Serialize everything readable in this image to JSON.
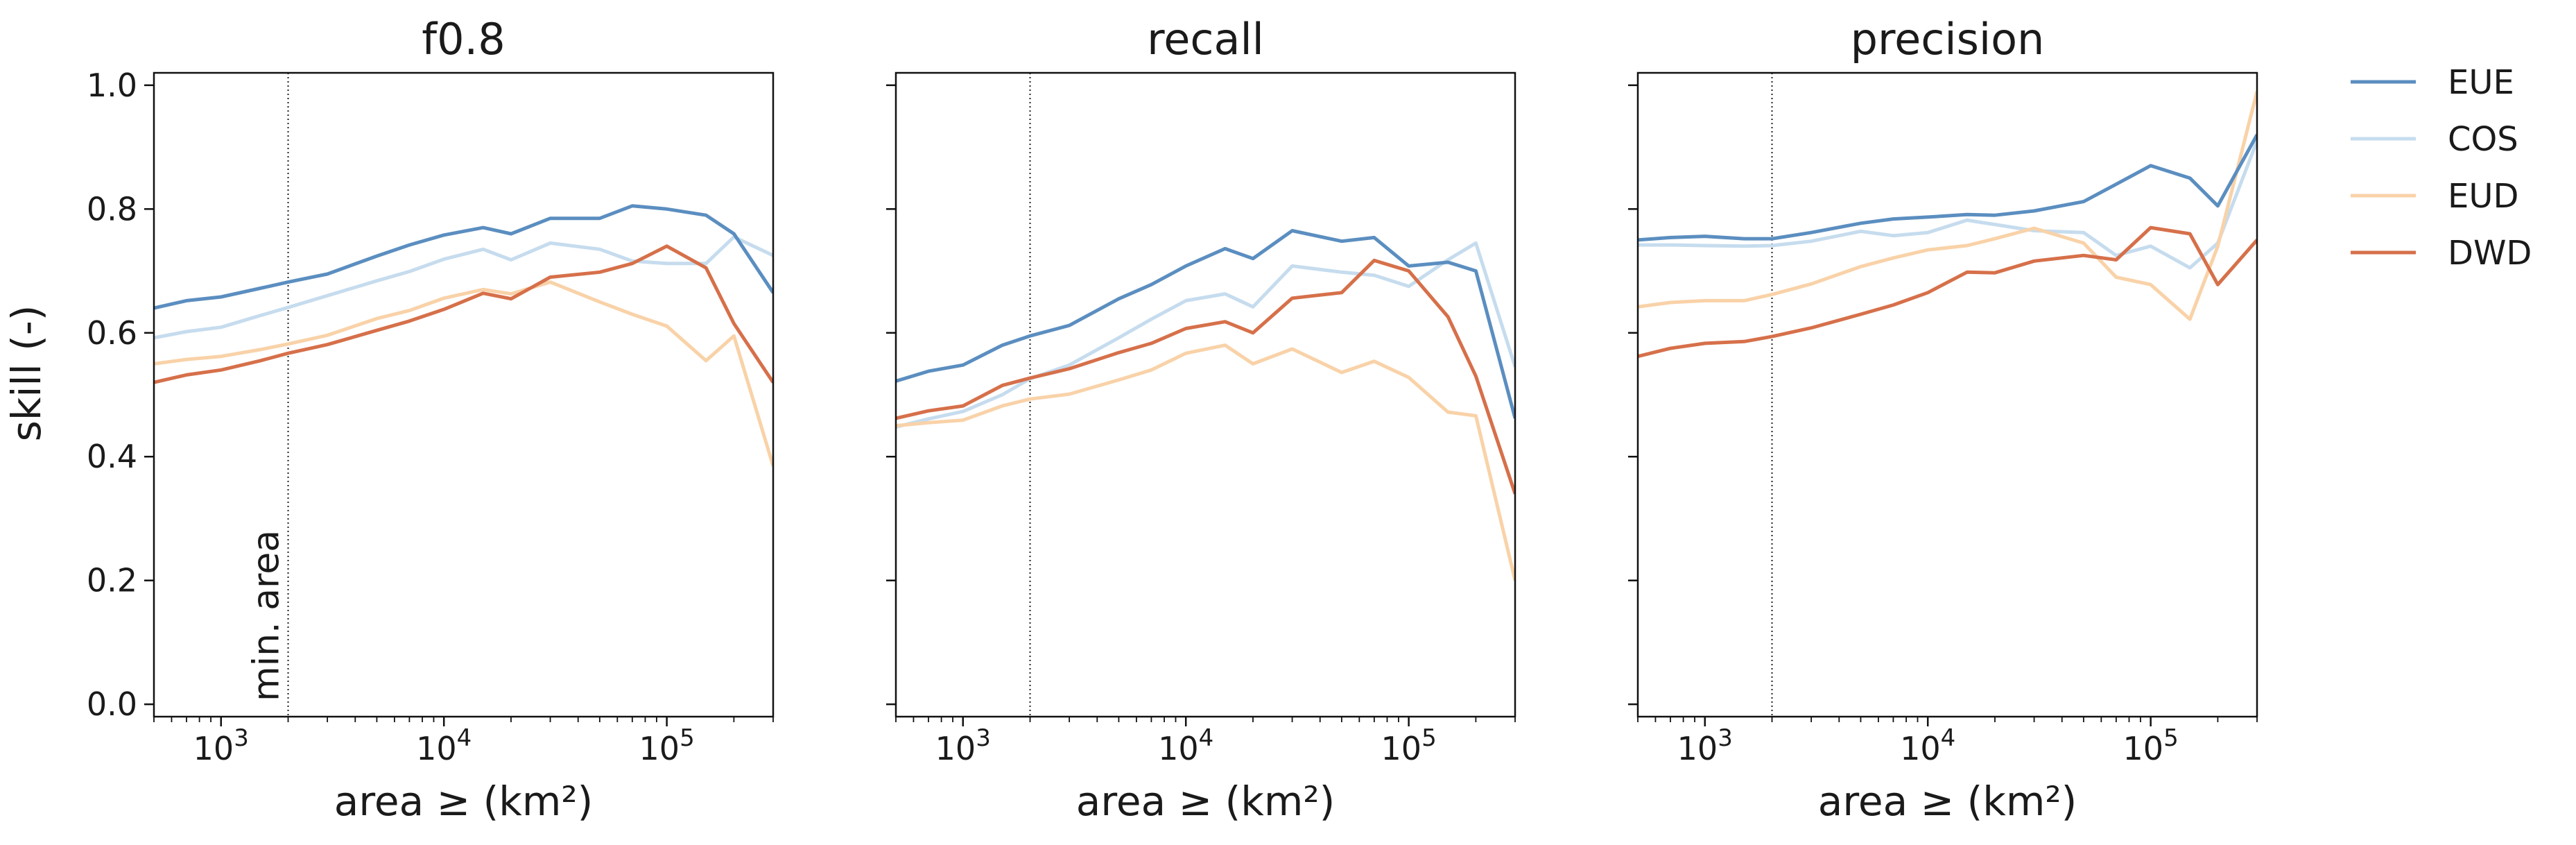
{
  "chart_data": {
    "type": "line",
    "ylabel": "skill (-)",
    "xlabel": "area ≥ (km²)",
    "x_scale": "log",
    "xlim": [
      500,
      300000
    ],
    "ylim": [
      -0.02,
      1.02
    ],
    "yticks": [
      0.0,
      0.2,
      0.4,
      0.6,
      0.8,
      1.0
    ],
    "ytick_labels": [
      "0.0",
      "0.2",
      "0.4",
      "0.6",
      "0.8",
      "1.0"
    ],
    "xtick_labels": [
      {
        "base": "10",
        "exp": "3",
        "value": 1000
      },
      {
        "base": "10",
        "exp": "4",
        "value": 10000
      },
      {
        "base": "10",
        "exp": "5",
        "value": 100000
      }
    ],
    "min_area": 2000,
    "min_area_label": "min. area",
    "legend_position": "right",
    "series_colors": {
      "EUE": "#5b8ec0",
      "COS": "#c6dcee",
      "EUD": "#f9d2a8",
      "DWD": "#d6704a"
    },
    "x": [
      500,
      700,
      1000,
      1500,
      2000,
      3000,
      5000,
      7000,
      10000,
      15000,
      20000,
      30000,
      50000,
      70000,
      100000,
      150000,
      200000,
      300000
    ],
    "panels": [
      {
        "title": "f0.8",
        "series": [
          {
            "name": "EUE",
            "values": [
              0.64,
              0.652,
              0.658,
              0.672,
              0.682,
              0.695,
              0.724,
              0.742,
              0.758,
              0.77,
              0.76,
              0.785,
              0.785,
              0.805,
              0.8,
              0.79,
              0.76,
              0.665
            ]
          },
          {
            "name": "COS",
            "values": [
              0.592,
              0.602,
              0.609,
              0.628,
              0.641,
              0.66,
              0.684,
              0.699,
              0.719,
              0.735,
              0.718,
              0.745,
              0.735,
              0.716,
              0.712,
              0.712,
              0.755,
              0.725
            ]
          },
          {
            "name": "EUD",
            "values": [
              0.55,
              0.557,
              0.562,
              0.573,
              0.582,
              0.596,
              0.623,
              0.636,
              0.656,
              0.67,
              0.663,
              0.682,
              0.65,
              0.63,
              0.611,
              0.555,
              0.595,
              0.385
            ]
          },
          {
            "name": "DWD",
            "values": [
              0.52,
              0.532,
              0.54,
              0.555,
              0.567,
              0.581,
              0.604,
              0.619,
              0.638,
              0.664,
              0.655,
              0.69,
              0.698,
              0.712,
              0.74,
              0.705,
              0.615,
              0.52
            ]
          }
        ]
      },
      {
        "title": "recall",
        "series": [
          {
            "name": "EUE",
            "values": [
              0.522,
              0.538,
              0.548,
              0.58,
              0.595,
              0.612,
              0.655,
              0.678,
              0.708,
              0.736,
              0.72,
              0.765,
              0.748,
              0.754,
              0.708,
              0.714,
              0.7,
              0.462
            ]
          },
          {
            "name": "COS",
            "values": [
              0.448,
              0.461,
              0.473,
              0.5,
              0.526,
              0.548,
              0.592,
              0.622,
              0.652,
              0.663,
              0.642,
              0.708,
              0.698,
              0.693,
              0.675,
              0.718,
              0.745,
              0.545
            ]
          },
          {
            "name": "EUD",
            "values": [
              0.45,
              0.455,
              0.459,
              0.482,
              0.493,
              0.501,
              0.524,
              0.54,
              0.567,
              0.58,
              0.55,
              0.574,
              0.536,
              0.554,
              0.528,
              0.472,
              0.466,
              0.2
            ]
          },
          {
            "name": "DWD",
            "values": [
              0.462,
              0.474,
              0.482,
              0.515,
              0.527,
              0.542,
              0.568,
              0.583,
              0.607,
              0.618,
              0.6,
              0.656,
              0.665,
              0.717,
              0.7,
              0.626,
              0.53,
              0.34
            ]
          }
        ]
      },
      {
        "title": "precision",
        "series": [
          {
            "name": "EUE",
            "values": [
              0.75,
              0.754,
              0.756,
              0.752,
              0.752,
              0.762,
              0.777,
              0.784,
              0.787,
              0.791,
              0.79,
              0.797,
              0.812,
              0.84,
              0.87,
              0.85,
              0.805,
              0.92
            ]
          },
          {
            "name": "COS",
            "values": [
              0.742,
              0.742,
              0.741,
              0.74,
              0.741,
              0.748,
              0.764,
              0.757,
              0.762,
              0.782,
              0.775,
              0.765,
              0.762,
              0.725,
              0.74,
              0.705,
              0.745,
              0.91
            ]
          },
          {
            "name": "EUD",
            "values": [
              0.642,
              0.649,
              0.652,
              0.652,
              0.662,
              0.679,
              0.707,
              0.721,
              0.734,
              0.741,
              0.752,
              0.769,
              0.745,
              0.69,
              0.678,
              0.622,
              0.74,
              0.99
            ]
          },
          {
            "name": "DWD",
            "values": [
              0.562,
              0.575,
              0.583,
              0.586,
              0.594,
              0.608,
              0.63,
              0.645,
              0.665,
              0.698,
              0.697,
              0.716,
              0.725,
              0.718,
              0.77,
              0.76,
              0.678,
              0.75
            ]
          }
        ]
      }
    ]
  }
}
